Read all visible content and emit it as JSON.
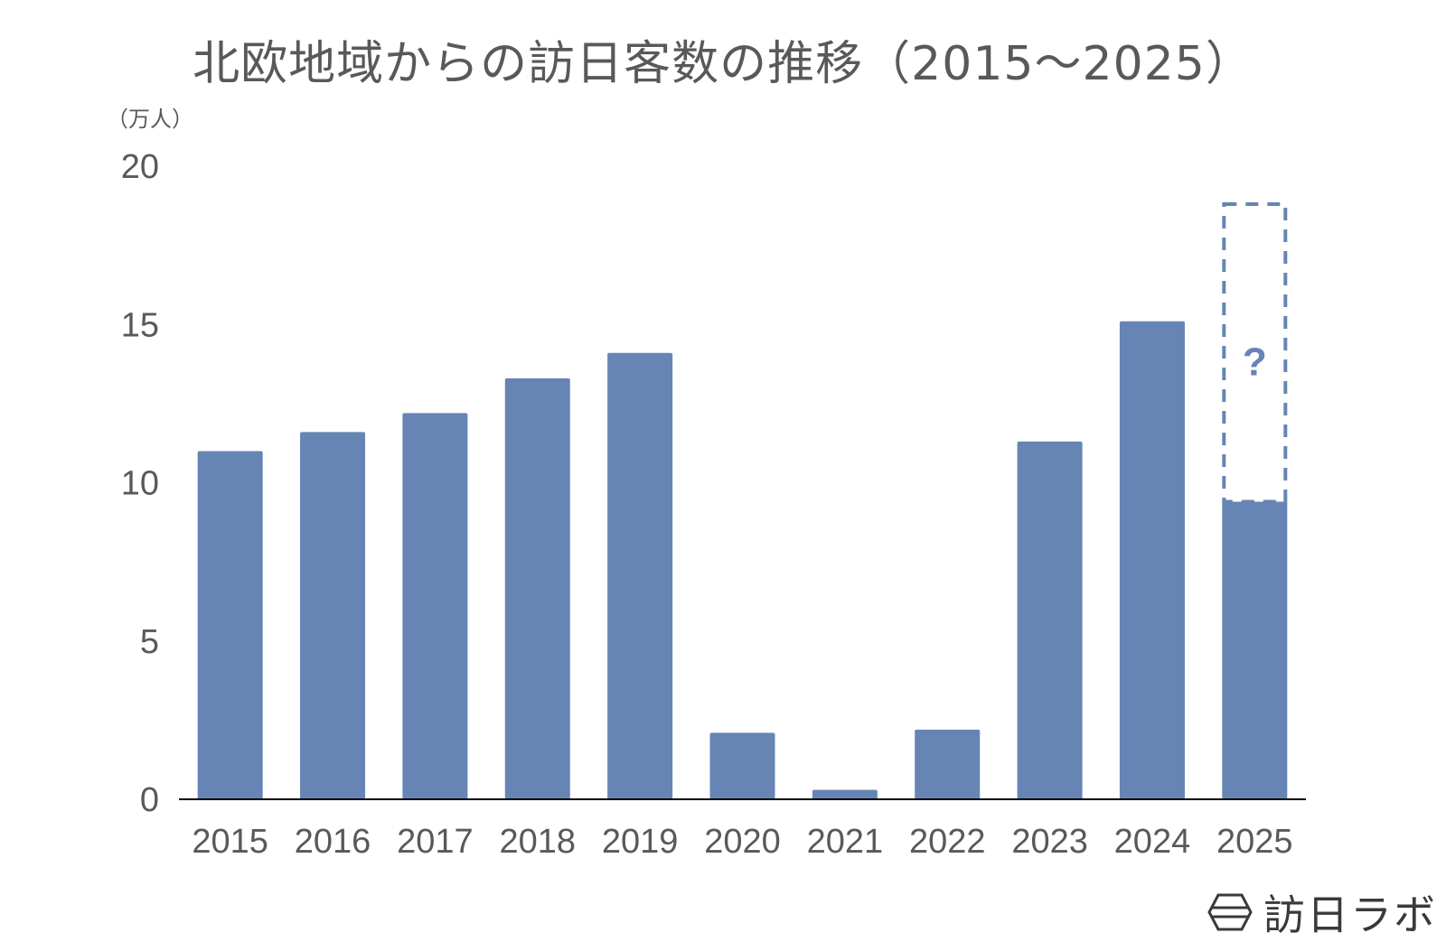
{
  "chart_data": {
    "type": "bar",
    "title": "北欧地域からの訪日客数の推移（2015～2025）",
    "unit_label": "（万人）",
    "categories": [
      "2015",
      "2016",
      "2017",
      "2018",
      "2019",
      "2020",
      "2021",
      "2022",
      "2023",
      "2024",
      "2025"
    ],
    "values": [
      11.0,
      11.6,
      12.2,
      13.3,
      14.1,
      2.1,
      0.3,
      2.2,
      11.3,
      15.1,
      9.4
    ],
    "projection": {
      "category": "2025",
      "upper_value": 18.8,
      "label": "?"
    },
    "ylim": [
      0,
      20
    ],
    "y_ticks": [
      "0",
      "5",
      "10",
      "15",
      "20"
    ],
    "y_tick_values": [
      0,
      5,
      10,
      15,
      20
    ],
    "grid": false,
    "colors": {
      "bar": "#6685b5",
      "text": "#595959",
      "axis": "#000000"
    }
  },
  "brand": {
    "logo_text": "訪日ラボ",
    "logo_icon": "hexagon-logo-icon"
  }
}
